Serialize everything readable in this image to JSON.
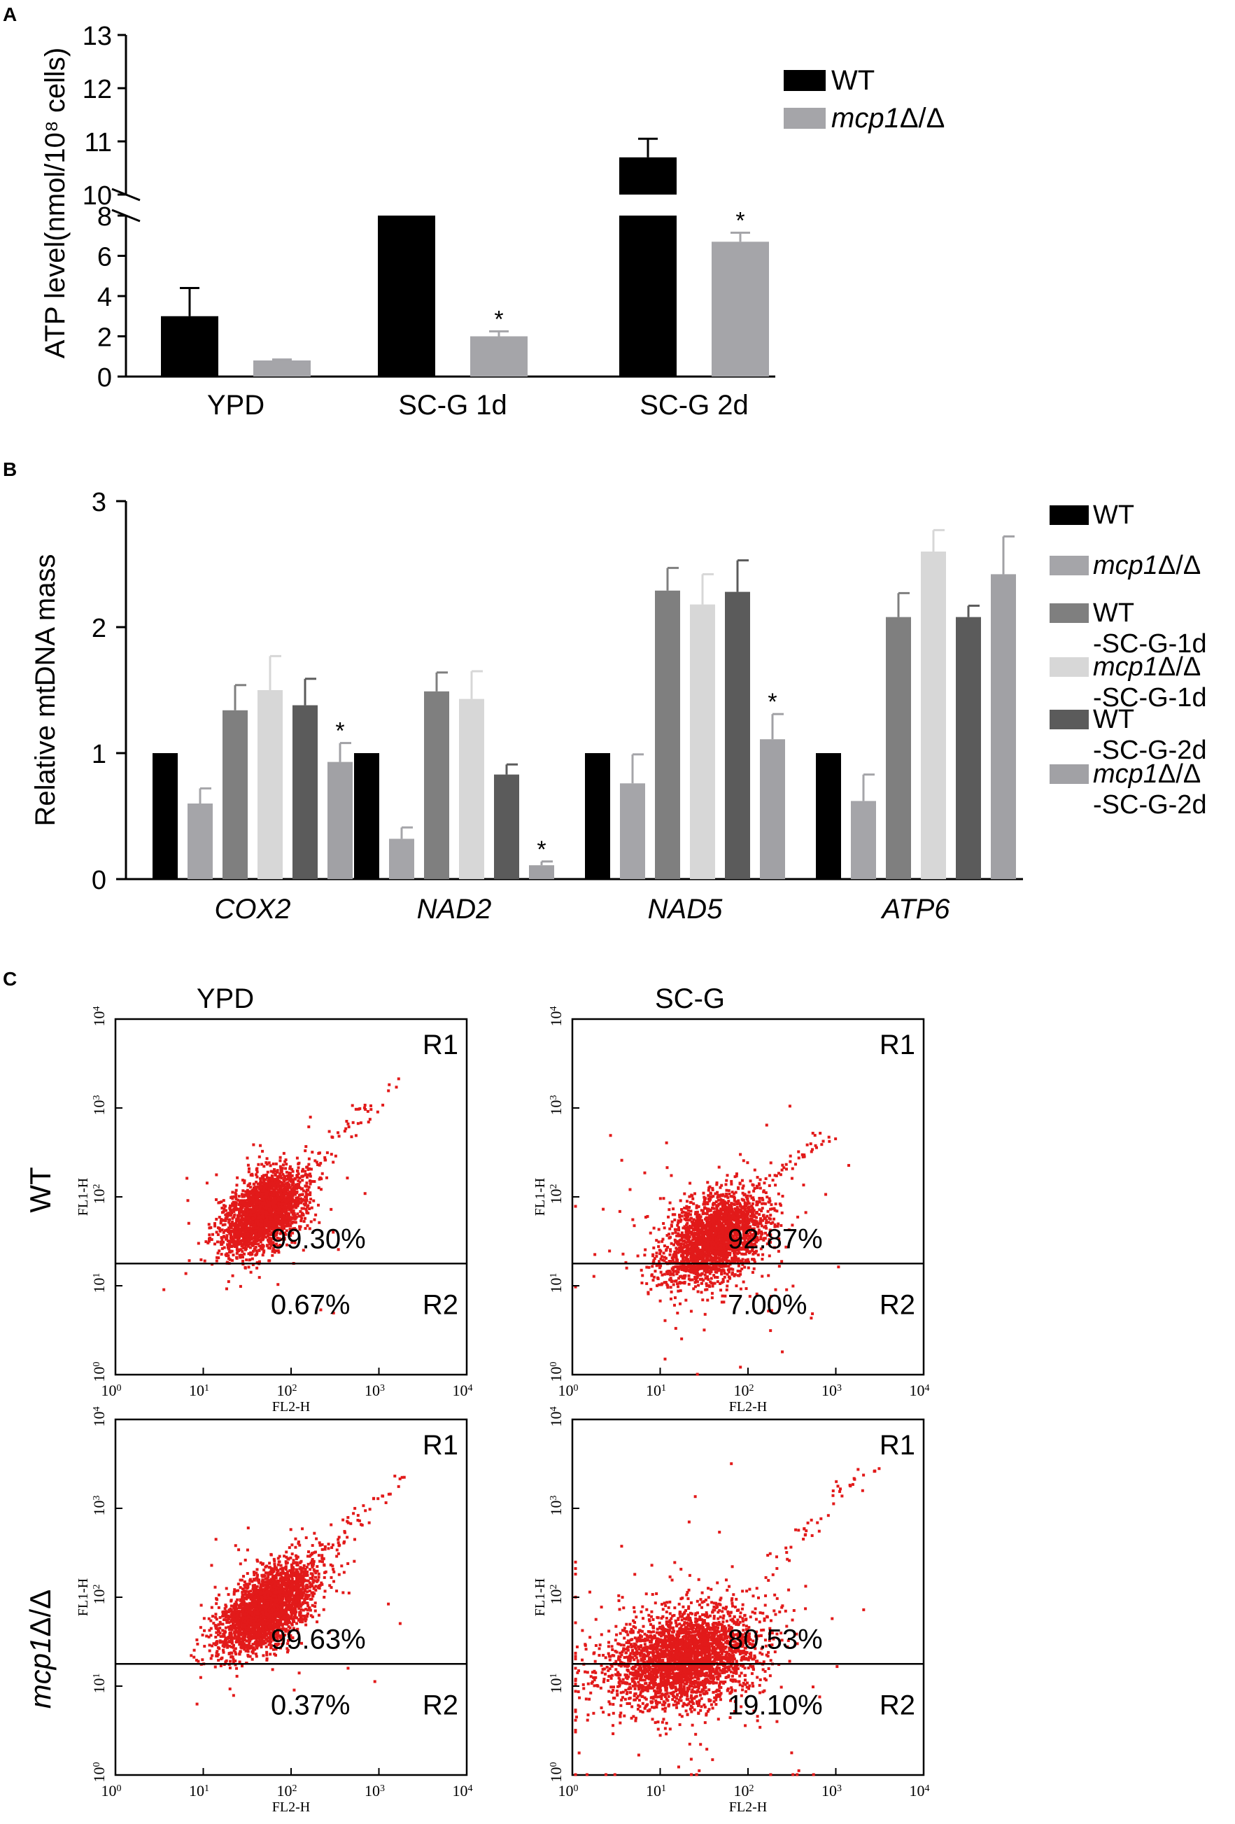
{
  "panels": {
    "A": {
      "letter": "A"
    },
    "B": {
      "letter": "B"
    },
    "C": {
      "letter": "C"
    }
  },
  "colors": {
    "wt": "#000000",
    "mcp1": "#a5a5a9",
    "wt_1d": "#7f7f7f",
    "mcp1_1d": "#d7d7d7",
    "wt_2d": "#5b5b5b",
    "mcp1_2d": "#a1a1a5",
    "dots": "#e21a1a"
  },
  "chart_data": [
    {
      "id": "A",
      "type": "bar",
      "title": "",
      "xlabel": "",
      "ylabel": "ATP level(nmol/10⁸ cells)",
      "categories": [
        "YPD",
        "SC-G 1d",
        "SC-G 2d"
      ],
      "series": [
        {
          "name": "WT",
          "name_plain": "WT",
          "color_key": "wt",
          "values": [
            3.0,
            8.1,
            10.7
          ],
          "errors": [
            1.4,
            0.4,
            0.35
          ],
          "sig": [
            false,
            false,
            false
          ]
        },
        {
          "name": "mcp1Δ/Δ",
          "name_italic": "mcp1",
          "name_plain": "Δ/Δ",
          "color_key": "mcp1",
          "values": [
            0.8,
            2.0,
            6.7
          ],
          "errors": [
            0.05,
            0.25,
            0.45
          ],
          "sig": [
            false,
            true,
            true
          ]
        }
      ],
      "axis_break": [
        9,
        10
      ],
      "yticks_lower": [
        0,
        2,
        4,
        6,
        8
      ],
      "yticks_upper": [
        10,
        11,
        12,
        13
      ],
      "ylim": [
        0,
        13
      ],
      "sig_marker": "*",
      "legend_position": "top-right"
    },
    {
      "id": "B",
      "type": "bar",
      "title": "",
      "xlabel": "",
      "ylabel": "Relative mtDNA mass",
      "categories": [
        "COX2",
        "NAD2",
        "NAD5",
        "ATP6"
      ],
      "series": [
        {
          "name": "WT",
          "legend_lines": [
            {
              "italic": "",
              "plain": "WT"
            }
          ],
          "color_key": "wt",
          "values": [
            1.0,
            1.0,
            1.0,
            1.0
          ],
          "errors": [
            0,
            0,
            0,
            0
          ],
          "sig": [
            false,
            false,
            false,
            false
          ]
        },
        {
          "name": "mcp1Δ/Δ",
          "legend_lines": [
            {
              "italic": "mcp1",
              "plain": "Δ/Δ"
            }
          ],
          "color_key": "mcp1",
          "values": [
            0.6,
            0.32,
            0.76,
            0.62
          ],
          "errors": [
            0.12,
            0.09,
            0.23,
            0.21
          ],
          "sig": [
            false,
            false,
            false,
            false
          ]
        },
        {
          "name": "WT -SC-G-1d",
          "legend_lines": [
            {
              "italic": "",
              "plain": "WT"
            },
            {
              "italic": "",
              "plain": "-SC-G-1d"
            }
          ],
          "color_key": "wt_1d",
          "values": [
            1.34,
            1.49,
            2.29,
            2.08
          ],
          "errors": [
            0.2,
            0.15,
            0.18,
            0.19
          ],
          "sig": [
            false,
            false,
            false,
            false
          ]
        },
        {
          "name": "mcp1Δ/Δ -SC-G-1d",
          "legend_lines": [
            {
              "italic": "mcp1",
              "plain": "Δ/Δ"
            },
            {
              "italic": "",
              "plain": "-SC-G-1d"
            }
          ],
          "color_key": "mcp1_1d",
          "values": [
            1.5,
            1.43,
            2.18,
            2.6
          ],
          "errors": [
            0.27,
            0.22,
            0.24,
            0.17
          ],
          "sig": [
            false,
            false,
            false,
            false
          ]
        },
        {
          "name": "WT -SC-G-2d",
          "legend_lines": [
            {
              "italic": "",
              "plain": "WT"
            },
            {
              "italic": "",
              "plain": "-SC-G-2d"
            }
          ],
          "color_key": "wt_2d",
          "values": [
            1.38,
            0.83,
            2.28,
            2.08
          ],
          "errors": [
            0.21,
            0.08,
            0.25,
            0.09
          ],
          "sig": [
            false,
            false,
            false,
            false
          ]
        },
        {
          "name": "mcp1Δ/Δ -SC-G-2d",
          "legend_lines": [
            {
              "italic": "mcp1",
              "plain": "Δ/Δ"
            },
            {
              "italic": "",
              "plain": "-SC-G-2d"
            }
          ],
          "color_key": "mcp1_2d",
          "values": [
            0.93,
            0.11,
            1.11,
            2.42
          ],
          "errors": [
            0.15,
            0.03,
            0.2,
            0.3
          ],
          "sig": [
            true,
            true,
            true,
            false
          ]
        }
      ],
      "yticks": [
        0,
        1,
        2,
        3
      ],
      "ylim": [
        0,
        3
      ],
      "sig_marker": "*",
      "legend_position": "right"
    },
    {
      "id": "C",
      "type": "scatter",
      "title": "",
      "column_labels": [
        "YPD",
        "SC-G"
      ],
      "row_labels": [
        {
          "italic": "",
          "plain": "WT"
        },
        {
          "italic": "mcp1",
          "plain": "Δ/Δ"
        }
      ],
      "xlabel": "FL2-H",
      "ylabel": "FL1-H",
      "xlim_log10": [
        0,
        4
      ],
      "ylim_log10": [
        0,
        4
      ],
      "tick_base": "10",
      "tick_exponents": [
        "0",
        "1",
        "2",
        "3",
        "4"
      ],
      "gate_log10": 1.25,
      "region_upper": "R1",
      "region_lower": "R2",
      "plots": [
        {
          "row": 0,
          "col": 0,
          "condition": "WT YPD",
          "r1_percent": "99.30%",
          "r2_percent": "0.67%",
          "cloud": {
            "center_x": 1.68,
            "center_y": 1.85,
            "spread_major": 0.28,
            "spread_minor": 0.17,
            "angle_deg": 42,
            "n": 2400
          },
          "tail": {
            "start_x": 2.0,
            "start_y": 2.2,
            "end_x": 3.2,
            "end_y": 3.3,
            "n": 45
          },
          "outliers": {
            "n": 60,
            "spread": 0.5
          }
        },
        {
          "row": 0,
          "col": 1,
          "condition": "WT SC-G",
          "r1_percent": "92.87%",
          "r2_percent": "7.00%",
          "cloud": {
            "center_x": 1.62,
            "center_y": 1.55,
            "spread_major": 0.32,
            "spread_minor": 0.2,
            "angle_deg": 38,
            "n": 2400
          },
          "tail": {
            "start_x": 2.0,
            "start_y": 2.0,
            "end_x": 2.9,
            "end_y": 2.75,
            "n": 40
          },
          "outliers": {
            "n": 140,
            "spread": 0.65
          }
        },
        {
          "row": 1,
          "col": 0,
          "condition": "mcp1Δ/Δ YPD",
          "r1_percent": "99.63%",
          "r2_percent": "0.37%",
          "cloud": {
            "center_x": 1.72,
            "center_y": 1.9,
            "spread_major": 0.33,
            "spread_minor": 0.17,
            "angle_deg": 42,
            "n": 2600
          },
          "tail": {
            "start_x": 2.1,
            "start_y": 2.3,
            "end_x": 3.25,
            "end_y": 3.35,
            "n": 50
          },
          "outliers": {
            "n": 60,
            "spread": 0.5
          }
        },
        {
          "row": 1,
          "col": 1,
          "condition": "mcp1Δ/Δ SC-G",
          "r1_percent": "80.53%",
          "r2_percent": "19.10%",
          "cloud": {
            "center_x": 1.25,
            "center_y": 1.32,
            "spread_major": 0.42,
            "spread_minor": 0.26,
            "angle_deg": 15,
            "n": 2800
          },
          "tail": {
            "start_x": 1.9,
            "start_y": 1.95,
            "end_x": 3.4,
            "end_y": 3.55,
            "n": 50
          },
          "outliers": {
            "n": 220,
            "spread": 0.8
          }
        }
      ]
    }
  ]
}
